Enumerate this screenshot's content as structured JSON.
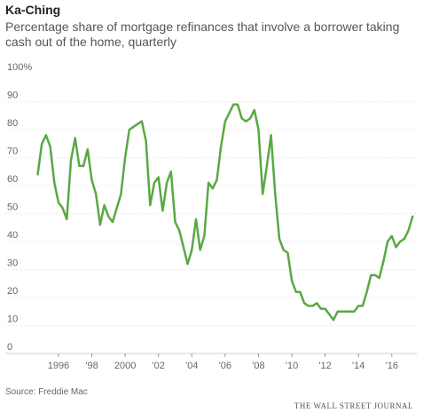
{
  "chart_data": {
    "type": "line",
    "title": "Ka-Ching",
    "subtitle": "Percentage share of mortgage refinances that involve a borrower taking cash out of the home, quarterly",
    "ylim": [
      0,
      100
    ],
    "xlim": [
      1994.3,
      2017.5
    ],
    "y_ticks": [
      {
        "value": 100,
        "label": "100%"
      },
      {
        "value": 90,
        "label": "90"
      },
      {
        "value": 80,
        "label": "80"
      },
      {
        "value": 70,
        "label": "70"
      },
      {
        "value": 60,
        "label": "60"
      },
      {
        "value": 50,
        "label": "50"
      },
      {
        "value": 40,
        "label": "40"
      },
      {
        "value": 30,
        "label": "30"
      },
      {
        "value": 20,
        "label": "20"
      },
      {
        "value": 10,
        "label": "10"
      },
      {
        "value": 0,
        "label": "0"
      }
    ],
    "x_ticks": [
      {
        "value": 1996,
        "label": "1996"
      },
      {
        "value": 1998,
        "label": "'98"
      },
      {
        "value": 2000,
        "label": "2000"
      },
      {
        "value": 2002,
        "label": "'02"
      },
      {
        "value": 2004,
        "label": "'04"
      },
      {
        "value": 2006,
        "label": "'06"
      },
      {
        "value": 2008,
        "label": "'08"
      },
      {
        "value": 2010,
        "label": "'10"
      },
      {
        "value": 2012,
        "label": "'12"
      },
      {
        "value": 2014,
        "label": "'14"
      },
      {
        "value": 2016,
        "label": "'16"
      }
    ],
    "grid": "horizontal",
    "line_color": "#5aa844",
    "series": [
      {
        "points": [
          [
            1994.75,
            64
          ],
          [
            1995.0,
            75
          ],
          [
            1995.25,
            78
          ],
          [
            1995.5,
            74
          ],
          [
            1995.75,
            61
          ],
          [
            1996.0,
            54
          ],
          [
            1996.25,
            52
          ],
          [
            1996.5,
            48
          ],
          [
            1996.75,
            69
          ],
          [
            1997.0,
            77
          ],
          [
            1997.25,
            67
          ],
          [
            1997.5,
            67
          ],
          [
            1997.75,
            73
          ],
          [
            1998.0,
            62
          ],
          [
            1998.25,
            57
          ],
          [
            1998.5,
            46
          ],
          [
            1998.75,
            53
          ],
          [
            1999.0,
            49
          ],
          [
            1999.25,
            47
          ],
          [
            1999.5,
            52
          ],
          [
            1999.75,
            57
          ],
          [
            2000.0,
            70
          ],
          [
            2000.25,
            80
          ],
          [
            2000.5,
            81
          ],
          [
            2000.75,
            82
          ],
          [
            2001.0,
            83
          ],
          [
            2001.25,
            76
          ],
          [
            2001.5,
            53
          ],
          [
            2001.75,
            61
          ],
          [
            2002.0,
            63
          ],
          [
            2002.25,
            51
          ],
          [
            2002.5,
            61
          ],
          [
            2002.75,
            65
          ],
          [
            2003.0,
            47
          ],
          [
            2003.25,
            44
          ],
          [
            2003.5,
            38
          ],
          [
            2003.75,
            32
          ],
          [
            2004.0,
            37
          ],
          [
            2004.25,
            48
          ],
          [
            2004.5,
            37
          ],
          [
            2004.75,
            42
          ],
          [
            2005.0,
            61
          ],
          [
            2005.25,
            59
          ],
          [
            2005.5,
            62
          ],
          [
            2005.75,
            74
          ],
          [
            2006.0,
            83
          ],
          [
            2006.25,
            86
          ],
          [
            2006.5,
            89
          ],
          [
            2006.75,
            89
          ],
          [
            2007.0,
            84
          ],
          [
            2007.25,
            83
          ],
          [
            2007.5,
            84
          ],
          [
            2007.75,
            87
          ],
          [
            2008.0,
            80
          ],
          [
            2008.25,
            57
          ],
          [
            2008.5,
            67
          ],
          [
            2008.75,
            78
          ],
          [
            2009.0,
            57
          ],
          [
            2009.25,
            41
          ],
          [
            2009.5,
            37
          ],
          [
            2009.75,
            36
          ],
          [
            2010.0,
            26
          ],
          [
            2010.25,
            22
          ],
          [
            2010.5,
            22
          ],
          [
            2010.75,
            18
          ],
          [
            2011.0,
            17
          ],
          [
            2011.25,
            17
          ],
          [
            2011.5,
            18
          ],
          [
            2011.75,
            16
          ],
          [
            2012.0,
            16
          ],
          [
            2012.25,
            14
          ],
          [
            2012.5,
            12
          ],
          [
            2012.75,
            15
          ],
          [
            2013.0,
            15
          ],
          [
            2013.25,
            15
          ],
          [
            2013.5,
            15
          ],
          [
            2013.75,
            15
          ],
          [
            2014.0,
            17
          ],
          [
            2014.25,
            17
          ],
          [
            2014.5,
            22
          ],
          [
            2014.75,
            28
          ],
          [
            2015.0,
            28
          ],
          [
            2015.25,
            27
          ],
          [
            2015.5,
            33
          ],
          [
            2015.75,
            40
          ],
          [
            2016.0,
            42
          ],
          [
            2016.25,
            38
          ],
          [
            2016.5,
            40
          ],
          [
            2016.75,
            41
          ],
          [
            2017.0,
            44
          ],
          [
            2017.25,
            49
          ]
        ]
      }
    ],
    "source": "Source: Freddie Mac"
  },
  "branding": "THE WALL STREET JOURNAL"
}
